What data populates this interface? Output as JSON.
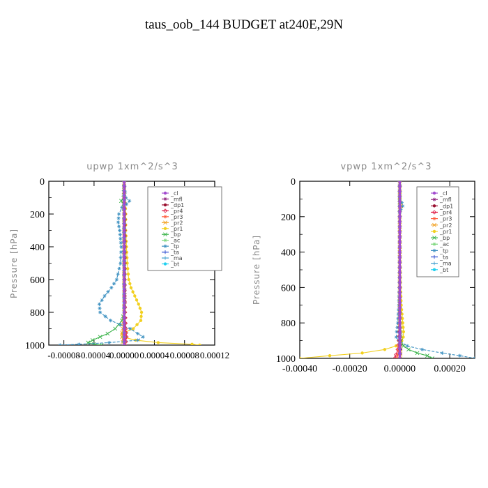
{
  "figure_title": "taus_oob_144  BUDGET at240E,29N",
  "legend_labels": [
    "_cl",
    "_mfl",
    "_dp1",
    "_pr4",
    "_pr3",
    "_pr2",
    "_pr1",
    "_bp",
    "_ac",
    "_tp",
    "_ta",
    "_ma",
    "_bt"
  ],
  "legend_colors": [
    "#a24bd0",
    "#8a1a7a",
    "#9a1030",
    "#e0204a",
    "#ff5a3a",
    "#f2a020",
    "#f2d020",
    "#3cb44b",
    "#7ad67a",
    "#3a8fc0",
    "#2a4ad0",
    "#40a0d0",
    "#20d0f0"
  ],
  "chart_data": [
    {
      "type": "line",
      "title": "upwp  1xm^2/s^3",
      "xlabel": "",
      "ylabel": "Pressure [hPa]",
      "xlim": [
        -0.0001,
        0.00012
      ],
      "ylim": [
        1000,
        0
      ],
      "x_ticks": [
        -8e-05,
        -4e-05,
        0.0,
        4e-05,
        8e-05,
        0.00012
      ],
      "x_tick_labels": [
        "-0.00008",
        "-0.00004",
        "0.00000",
        "0.00004",
        "0.00008",
        "0.00012"
      ],
      "y_ticks": [
        0,
        200,
        400,
        600,
        800,
        1000
      ],
      "y_tick_labels": [
        "0",
        "200",
        "400",
        "600",
        "800",
        "1000"
      ],
      "legend": "top-right",
      "series": [
        {
          "name": "_cl",
          "pressure": [
            0,
            100,
            200,
            300,
            400,
            500,
            600,
            700,
            800,
            900,
            1000
          ],
          "values": [
            0,
            0,
            0,
            0,
            0,
            0,
            0,
            0,
            0,
            0,
            0
          ]
        },
        {
          "name": "_mfl",
          "pressure": [
            0,
            100,
            200,
            300,
            400,
            500,
            600,
            700,
            800,
            900,
            1000
          ],
          "values": [
            0,
            0,
            0,
            0,
            0,
            0,
            0,
            0,
            0,
            0,
            0
          ]
        },
        {
          "name": "_dp1",
          "pressure": [
            0,
            100,
            200,
            300,
            400,
            500,
            600,
            700,
            800,
            900,
            950,
            980,
            1000
          ],
          "values": [
            0,
            0,
            1e-06,
            1e-06,
            1e-06,
            1e-06,
            1e-06,
            1e-06,
            1e-06,
            1e-06,
            2e-06,
            1e-06,
            1e-06
          ]
        },
        {
          "name": "_pr4",
          "pressure": [
            0,
            200,
            400,
            600,
            800,
            900,
            950,
            980,
            1000
          ],
          "values": [
            0,
            0,
            0,
            0,
            1e-06,
            2e-06,
            3e-06,
            2e-06,
            1e-06
          ]
        },
        {
          "name": "_pr3",
          "pressure": [
            0,
            200,
            400,
            600,
            800,
            900,
            950,
            980,
            1000
          ],
          "values": [
            0,
            0,
            0,
            0,
            0,
            1e-06,
            2e-06,
            1e-06,
            0
          ]
        },
        {
          "name": "_pr2",
          "pressure": [
            0,
            200,
            400,
            600,
            800,
            900,
            950,
            980,
            1000
          ],
          "values": [
            0,
            0,
            0,
            0,
            0,
            -2e-06,
            -3e-06,
            -2e-06,
            0
          ]
        },
        {
          "name": "_pr1",
          "pressure": [
            0,
            100,
            200,
            300,
            400,
            500,
            600,
            650,
            700,
            750,
            800,
            850,
            900,
            930,
            950,
            970,
            985,
            995,
            1000
          ],
          "values": [
            0,
            1e-06,
            2e-06,
            2e-06,
            3e-06,
            4e-06,
            6e-06,
            9e-06,
            1.4e-05,
            1.9e-05,
            2.3e-05,
            2.2e-05,
            1.2e-05,
            -3e-06,
            -2e-06,
            1.5e-05,
            4.5e-05,
            9e-05,
            0.0001
          ]
        },
        {
          "name": "_bp",
          "pressure": [
            0,
            100,
            120,
            140,
            200,
            300,
            400,
            500,
            600,
            700,
            800,
            850,
            900,
            930,
            950,
            970,
            985,
            995,
            1000
          ],
          "values": [
            0,
            -1e-06,
            -4e-06,
            -1e-06,
            0,
            0,
            0,
            0,
            0,
            0,
            0,
            -3e-06,
            -1.2e-05,
            -2.2e-05,
            -3.2e-05,
            -4.2e-05,
            -4.8e-05,
            -4e-05,
            -3e-05
          ]
        },
        {
          "name": "_ac",
          "pressure": [
            0,
            200,
            400,
            600,
            800,
            900,
            950,
            980,
            1000
          ],
          "values": [
            0,
            0,
            0,
            0,
            0,
            0,
            -1e-06,
            -1e-06,
            0
          ]
        },
        {
          "name": "_tp",
          "pressure": [
            0,
            100,
            120,
            140,
            160,
            200,
            250,
            300,
            350,
            400,
            500,
            600,
            650,
            700,
            750,
            800,
            850,
            900,
            930,
            950,
            970,
            985,
            995,
            1000
          ],
          "values": [
            0,
            2e-06,
            7e-06,
            3e-06,
            -3e-06,
            -7e-06,
            -8e-06,
            -6e-06,
            -5e-06,
            -4e-06,
            -5e-06,
            -1e-05,
            -1.7e-05,
            -2.6e-05,
            -3.3e-05,
            -3.2e-05,
            -1.8e-05,
            8e-06,
            1.8e-05,
            2.5e-05,
            1.8e-05,
            -2e-05,
            -6e-05,
            -8.5e-05
          ]
        },
        {
          "name": "_ta",
          "pressure": [
            0,
            200,
            400,
            600,
            800,
            900,
            950,
            980,
            1000
          ],
          "values": [
            0,
            0,
            0,
            0,
            0,
            0,
            1e-06,
            0,
            0
          ]
        },
        {
          "name": "_ma",
          "pressure": [
            0,
            200,
            400,
            600,
            800,
            900,
            950,
            980,
            1000
          ],
          "values": [
            0,
            0,
            0,
            0,
            0,
            0,
            0,
            0,
            0
          ]
        },
        {
          "name": "_bt",
          "pressure": [
            0,
            200,
            400,
            600,
            800,
            900,
            950,
            980,
            1000
          ],
          "values": [
            0,
            0,
            0,
            0,
            0,
            0,
            0,
            0,
            0
          ]
        }
      ]
    },
    {
      "type": "line",
      "title": "vpwp  1xm^2/s^3",
      "xlabel": "",
      "ylabel": "Pressure [hPa]",
      "xlim": [
        -0.0004,
        0.0003
      ],
      "ylim": [
        1000,
        0
      ],
      "x_ticks": [
        -0.0004,
        -0.0002,
        0.0,
        0.0002
      ],
      "x_tick_labels": [
        "-0.00040",
        "-0.00020",
        "0.00000",
        "0.00020"
      ],
      "y_ticks": [
        0,
        200,
        400,
        600,
        800,
        1000
      ],
      "y_tick_labels": [
        "0",
        "200",
        "400",
        "600",
        "800",
        "1000"
      ],
      "legend": "top-right",
      "series": [
        {
          "name": "_cl",
          "pressure": [
            0,
            200,
            400,
            600,
            800,
            1000
          ],
          "values": [
            0,
            0,
            0,
            0,
            0,
            0
          ]
        },
        {
          "name": "_mfl",
          "pressure": [
            0,
            200,
            400,
            600,
            800,
            1000
          ],
          "values": [
            0,
            0,
            0,
            0,
            0,
            0
          ]
        },
        {
          "name": "_dp1",
          "pressure": [
            0,
            200,
            400,
            600,
            800,
            900,
            950,
            1000
          ],
          "values": [
            0,
            0,
            0,
            0,
            0,
            2e-06,
            4e-06,
            2e-06
          ]
        },
        {
          "name": "_pr4",
          "pressure": [
            0,
            200,
            400,
            600,
            800,
            900,
            950,
            980,
            1000
          ],
          "values": [
            0,
            0,
            0,
            0,
            0,
            -3e-06,
            -8e-06,
            -1.5e-05,
            -2e-05
          ]
        },
        {
          "name": "_pr3",
          "pressure": [
            0,
            200,
            400,
            600,
            800,
            900,
            950,
            980,
            1000
          ],
          "values": [
            0,
            0,
            0,
            0,
            0,
            -2e-06,
            -5e-06,
            -8e-06,
            -1e-05
          ]
        },
        {
          "name": "_pr2",
          "pressure": [
            0,
            120,
            140,
            160,
            200,
            400,
            600,
            800,
            900,
            950,
            1000
          ],
          "values": [
            0,
            0,
            4e-06,
            0,
            0,
            0,
            0,
            0,
            2e-06,
            3e-06,
            2e-06
          ]
        },
        {
          "name": "_pr1",
          "pressure": [
            0,
            200,
            400,
            600,
            700,
            800,
            850,
            880,
            900,
            930,
            950,
            970,
            985,
            1000
          ],
          "values": [
            0,
            0,
            1e-06,
            3e-06,
            6e-06,
            1.2e-05,
            1.5e-05,
            1.4e-05,
            8e-06,
            -1.5e-05,
            -6e-05,
            -0.00015,
            -0.00028,
            -0.0004
          ]
        },
        {
          "name": "_bp",
          "pressure": [
            0,
            200,
            400,
            600,
            800,
            900,
            930,
            950,
            970,
            985,
            1000
          ],
          "values": [
            0,
            0,
            0,
            0,
            0,
            5e-06,
            1.5e-05,
            3.5e-05,
            7e-05,
            0.00011,
            0.00013
          ]
        },
        {
          "name": "_ac",
          "pressure": [
            0,
            200,
            400,
            600,
            800,
            900,
            950,
            1000
          ],
          "values": [
            0,
            0,
            0,
            0,
            0,
            0,
            1e-06,
            0
          ]
        },
        {
          "name": "_tp",
          "pressure": [
            0,
            100,
            120,
            140,
            160,
            200,
            400,
            600,
            700,
            800,
            850,
            880,
            900,
            930,
            950,
            970,
            985,
            1000
          ],
          "values": [
            0,
            0,
            8e-06,
            1.2e-05,
            4e-06,
            0,
            0,
            -2e-06,
            -4e-06,
            -8e-06,
            -1.2e-05,
            -1.4e-05,
            -5e-06,
            3e-05,
            9e-05,
            0.00017,
            0.00024,
            0.0003
          ]
        },
        {
          "name": "_ta",
          "pressure": [
            0,
            200,
            400,
            600,
            800,
            900,
            950,
            1000
          ],
          "values": [
            0,
            0,
            0,
            0,
            0,
            0,
            1e-06,
            0
          ]
        },
        {
          "name": "_ma",
          "pressure": [
            0,
            200,
            400,
            600,
            800,
            1000
          ],
          "values": [
            0,
            0,
            0,
            0,
            0,
            0
          ]
        },
        {
          "name": "_bt",
          "pressure": [
            0,
            200,
            400,
            600,
            800,
            1000
          ],
          "values": [
            0,
            0,
            0,
            0,
            0,
            0
          ]
        }
      ]
    }
  ]
}
